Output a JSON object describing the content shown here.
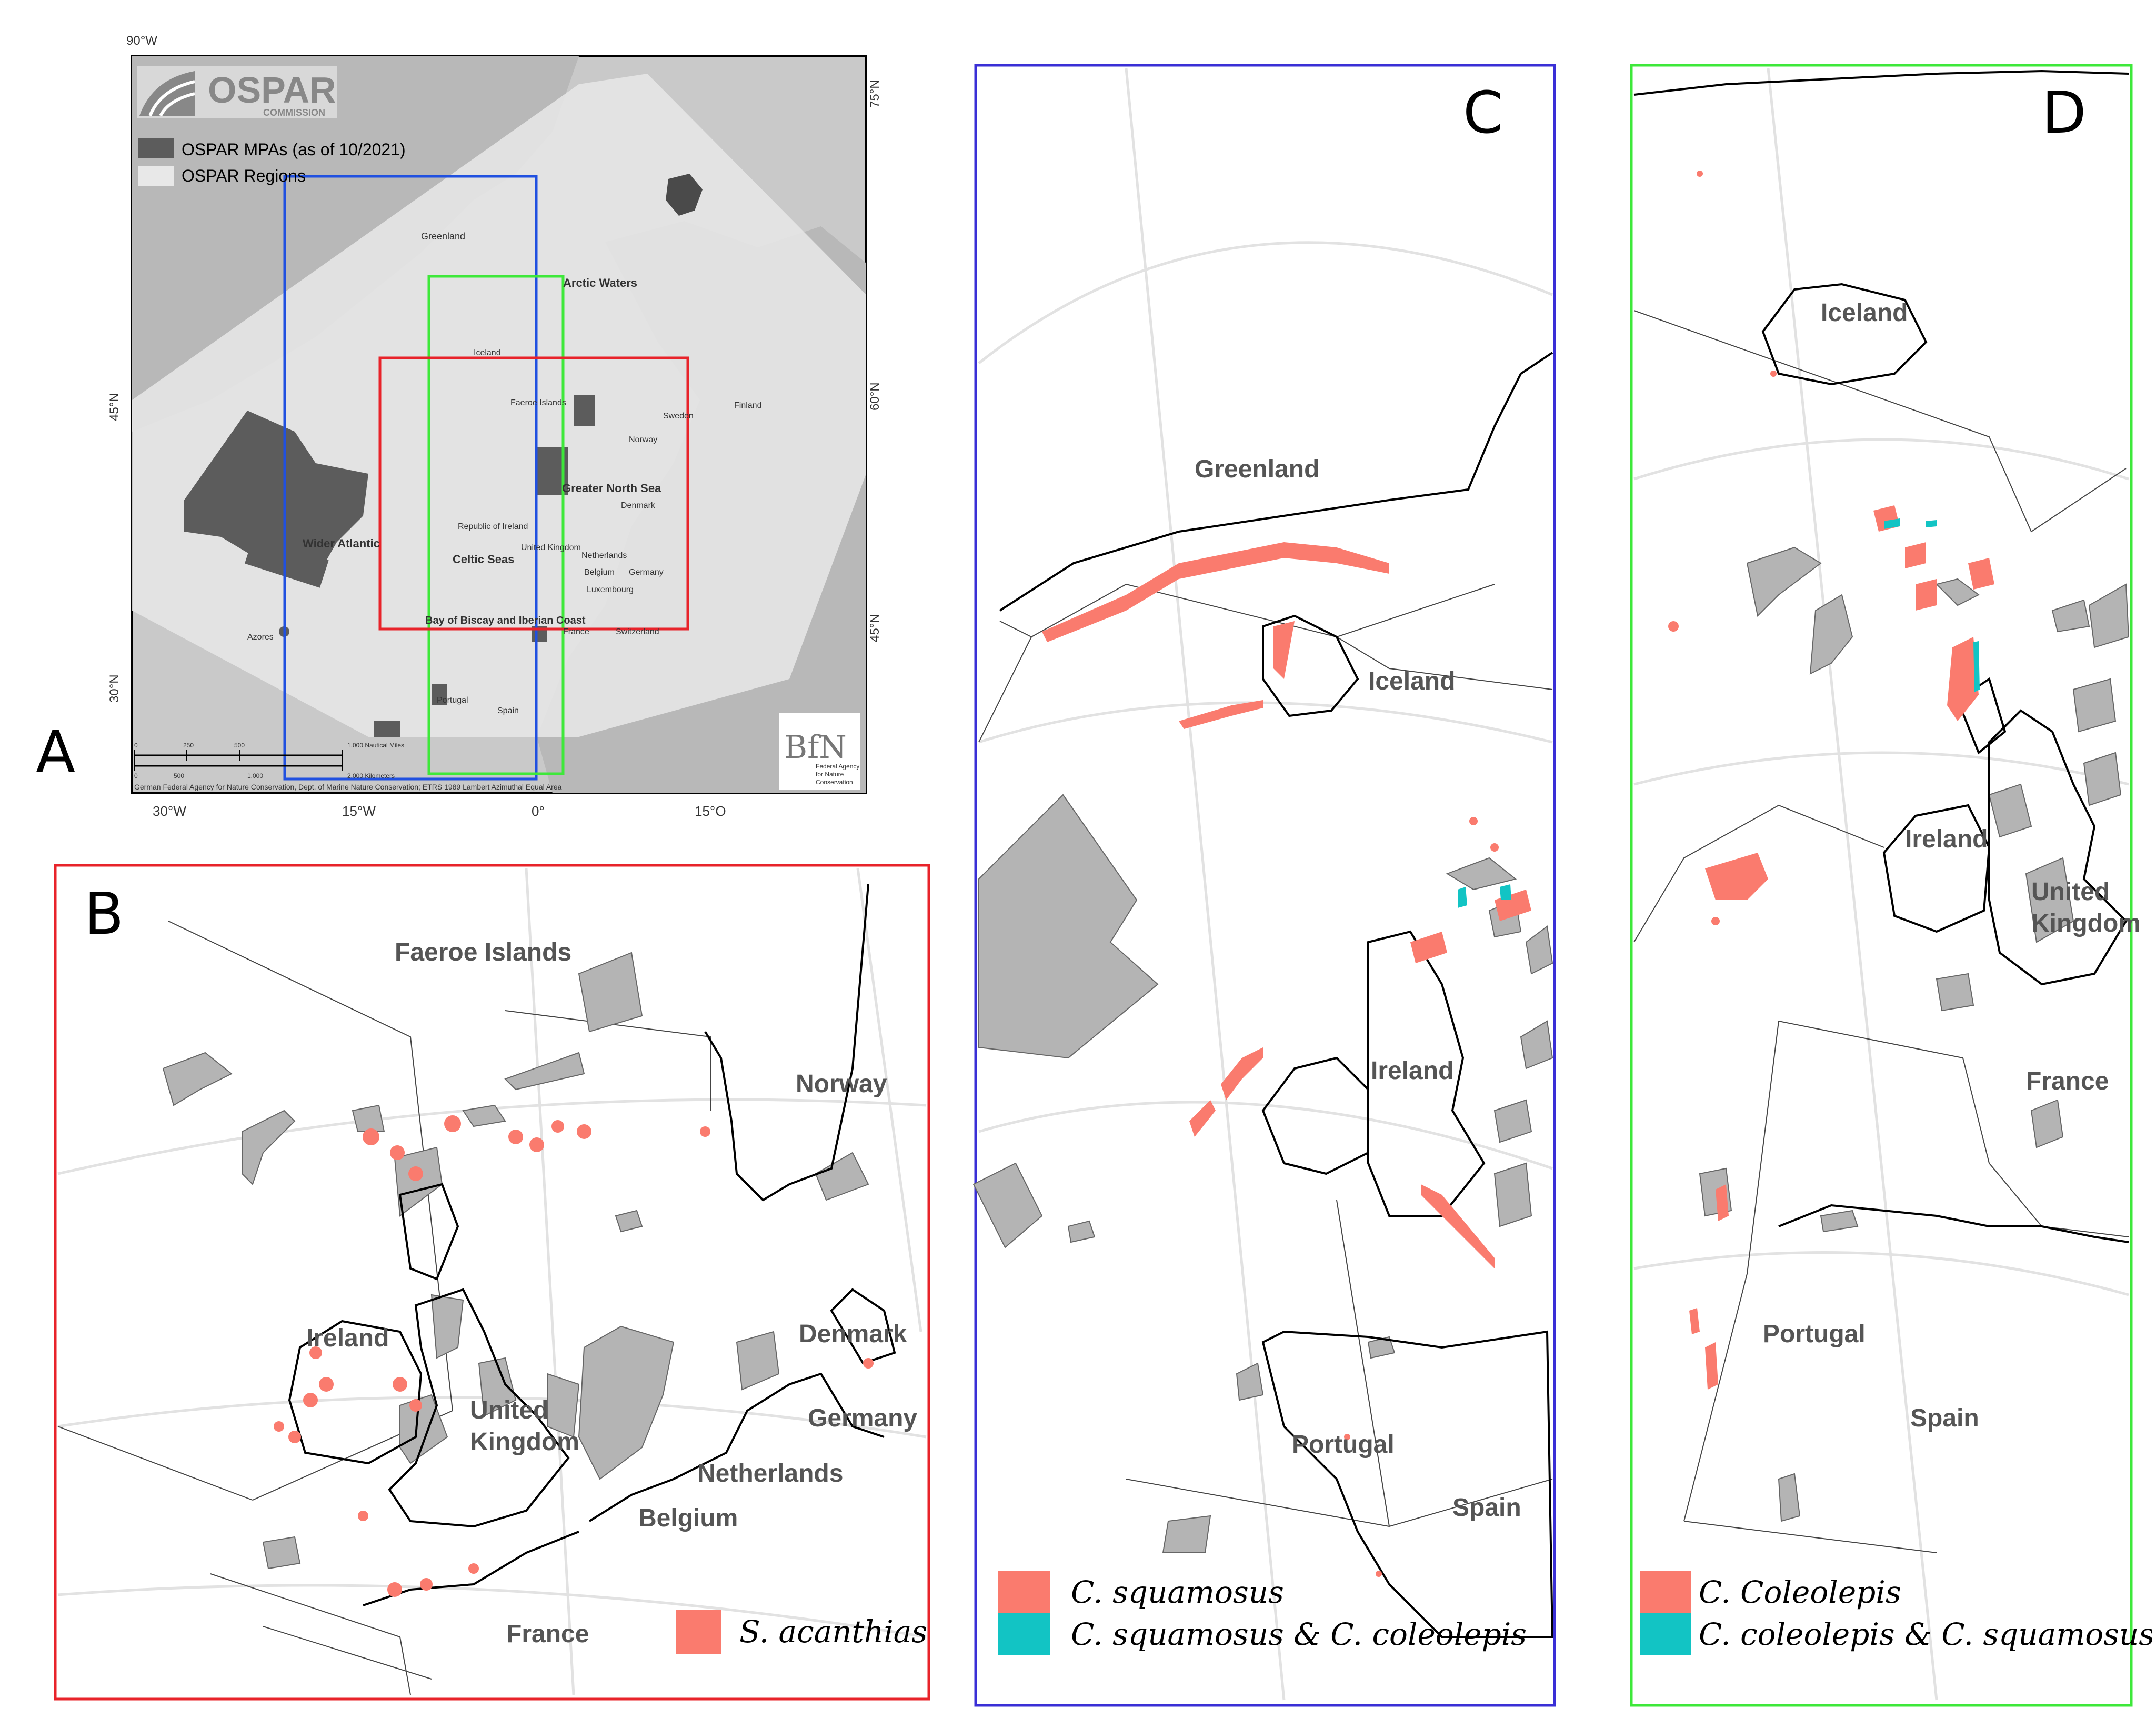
{
  "panels": {
    "A": {
      "letter": "A"
    },
    "B": {
      "letter": "B"
    },
    "C": {
      "letter": "C"
    },
    "D": {
      "letter": "D"
    }
  },
  "colors": {
    "red_frame": "#e8232a",
    "blue_frame": "#3a2fd6",
    "green_frame": "#3ee83a",
    "inset_blue": "#2050e0",
    "mpa_grey": "#b4b4b4",
    "mpa_dark": "#5c5c5c",
    "salmon": "#fa7b6e",
    "teal": "#12c4c4"
  },
  "panelA": {
    "logo_name": "OSPAR",
    "logo_sub": "COMMISSION",
    "legend": [
      "OSPAR MPAs (as of 10/2021)",
      "OSPAR Regions"
    ],
    "top_lon": "90°W",
    "lat_right": [
      "75°N",
      "60°N",
      "45°N"
    ],
    "lat_left": [
      "45°N",
      "30°N"
    ],
    "lon_bottom": [
      "30°W",
      "15°W",
      "0°",
      "15°O"
    ],
    "places": [
      "Greenland",
      "Arctic Waters",
      "Iceland",
      "Faeroe Islands",
      "Finland",
      "Sweden",
      "Norway",
      "Greater North Sea",
      "Denmark",
      "Republic of Ireland",
      "United Kingdom",
      "Netherlands",
      "Belgium",
      "Germany",
      "Luxembourg",
      "Wider Atlantic",
      "Celtic Seas",
      "Bay of Biscay and Iberian Coast",
      "France",
      "Switzerland",
      "Azores",
      "Portugal",
      "Spain"
    ],
    "scale_top": [
      "0",
      "250",
      "500",
      "1.000 Nautical Miles"
    ],
    "scale_bottom": [
      "0",
      "500",
      "1.000",
      "2.000 Kilometers"
    ],
    "credit": "German Federal Agency for Nature Conservation, Dept. of Marine Nature Conservation; ETRS 1989 Lambert Azimuthal Equal Area",
    "bfn_logo": "BfN",
    "bfn_caption": [
      "Federal Agency",
      "for Nature",
      "Conservation"
    ]
  },
  "panelB": {
    "places": [
      "Faeroe Islands",
      "Norway",
      "Denmark",
      "Ireland",
      "United",
      "Kingdom",
      "Germany",
      "Netherlands",
      "Belgium",
      "France"
    ],
    "legend": [
      "S. acanthias"
    ]
  },
  "panelC": {
    "places": [
      "Greenland",
      "Iceland",
      "Ireland",
      "Portugal",
      "Spain"
    ],
    "legend": [
      "C. squamosus",
      "C. squamosus & C. coleolepis"
    ]
  },
  "panelD": {
    "places": [
      "Iceland",
      "Ireland",
      "United",
      "Kingdom",
      "France",
      "Portugal",
      "Spain"
    ],
    "legend": [
      "C. Coleolepis",
      "C. coleolepis & C. squamosus"
    ]
  }
}
